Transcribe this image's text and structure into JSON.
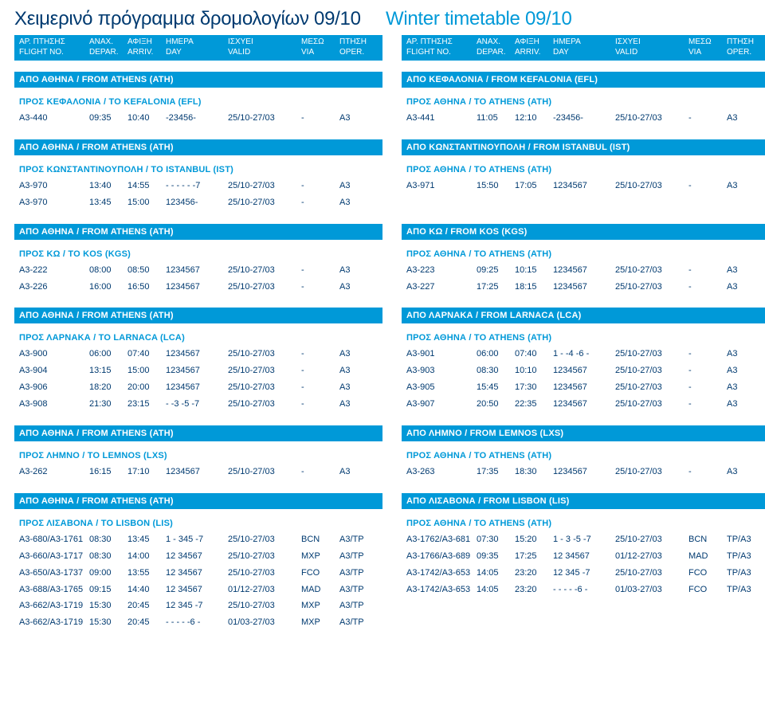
{
  "titles": {
    "left": "Χειμερινό πρόγραμμα δρομολογίων 09/10",
    "right": "Winter timetable 09/10"
  },
  "header": {
    "c1a": "ΑΡ. ΠΤΗΣΗΣ",
    "c1b": "FLIGHT NO.",
    "c2a": "ΑΝΑΧ.",
    "c2b": "DEPAR.",
    "c3a": "ΑΦΙΞΗ",
    "c3b": "ARRIV.",
    "c4a": "ΗΜΕΡΑ",
    "c4b": "DAY",
    "c5a": "ΙΣΧΥΕΙ",
    "c5b": "VALID",
    "c6a": "ΜΕΣΩ",
    "c6b": "VIA",
    "c7a": "ΠΤΗΣΗ",
    "c7b": "OPER."
  },
  "left": [
    {
      "bar": "ΑΠΟ ΑΘΗΝΑ / FROM ATHENS (ATH)",
      "title": "ΠΡΟΣ ΚΕΦΑΛΟΝΙΑ / TO KEFALONIA (EFL)",
      "rows": [
        {
          "f": "A3-440",
          "d": "09:35",
          "a": "10:40",
          "y": "-23456-",
          "v": "25/10-27/03",
          "via": "-",
          "op": "A3"
        }
      ]
    },
    {
      "bar": "ΑΠΟ ΑΘΗΝΑ / FROM ATHENS (ATH)",
      "title": "ΠΡΟΣ ΚΩΝΣΤΑΝΤΙΝΟΥΠΟΛΗ / TO ISTANBUL (IST)",
      "rows": [
        {
          "f": "A3-970",
          "d": "13:40",
          "a": "14:55",
          "y": "- - - - - -7",
          "v": "25/10-27/03",
          "via": "-",
          "op": "A3"
        },
        {
          "f": "A3-970",
          "d": "13:45",
          "a": "15:00",
          "y": "123456-",
          "v": "25/10-27/03",
          "via": "-",
          "op": "A3"
        }
      ]
    },
    {
      "bar": "ΑΠΟ ΑΘΗΝΑ / FROM ATHENS (ATH)",
      "title": "ΠΡΟΣ ΚΩ / TO KOS (KGS)",
      "rows": [
        {
          "f": "A3-222",
          "d": "08:00",
          "a": "08:50",
          "y": "1234567",
          "v": "25/10-27/03",
          "via": "-",
          "op": "A3"
        },
        {
          "f": "A3-226",
          "d": "16:00",
          "a": "16:50",
          "y": "1234567",
          "v": "25/10-27/03",
          "via": "-",
          "op": "A3"
        }
      ]
    },
    {
      "bar": "ΑΠΟ ΑΘΗΝΑ / FROM ATHENS (ATH)",
      "title": "ΠΡΟΣ ΛΑΡΝΑΚΑ / TO LARNACA (LCA)",
      "rows": [
        {
          "f": "A3-900",
          "d": "06:00",
          "a": "07:40",
          "y": "1234567",
          "v": "25/10-27/03",
          "via": "-",
          "op": "A3"
        },
        {
          "f": "A3-904",
          "d": "13:15",
          "a": "15:00",
          "y": "1234567",
          "v": "25/10-27/03",
          "via": "-",
          "op": "A3"
        },
        {
          "f": "A3-906",
          "d": "18:20",
          "a": "20:00",
          "y": "1234567",
          "v": "25/10-27/03",
          "via": "-",
          "op": "A3"
        },
        {
          "f": "A3-908",
          "d": "21:30",
          "a": "23:15",
          "y": "- -3 -5 -7",
          "v": "25/10-27/03",
          "via": "-",
          "op": "A3"
        }
      ]
    },
    {
      "bar": "ΑΠΟ ΑΘΗΝΑ / FROM ATHENS (ATH)",
      "title": "ΠΡΟΣ ΛΗΜΝΟ / TO LEMNOS (LXS)",
      "rows": [
        {
          "f": "A3-262",
          "d": "16:15",
          "a": "17:10",
          "y": "1234567",
          "v": "25/10-27/03",
          "via": "-",
          "op": "A3"
        }
      ]
    },
    {
      "bar": "ΑΠΟ ΑΘΗΝΑ / FROM ATHENS (ATH)",
      "title": "ΠΡΟΣ ΛΙΣΑΒΟΝΑ / TO LISBON (LIS)",
      "rows": [
        {
          "f": "A3-680/A3-1761",
          "d": "08:30",
          "a": "13:45",
          "y": "1 - 345 -7",
          "v": "25/10-27/03",
          "via": "BCN",
          "op": "A3/TP"
        },
        {
          "f": "A3-660/A3-1717",
          "d": "08:30",
          "a": "14:00",
          "y": "12 34567",
          "v": "25/10-27/03",
          "via": "MXP",
          "op": "A3/TP"
        },
        {
          "f": "A3-650/A3-1737",
          "d": "09:00",
          "a": "13:55",
          "y": "12 34567",
          "v": "25/10-27/03",
          "via": "FCO",
          "op": "A3/TP"
        },
        {
          "f": "A3-688/A3-1765",
          "d": "09:15",
          "a": "14:40",
          "y": "12 34567",
          "v": "01/12-27/03",
          "via": "MAD",
          "op": "A3/TP"
        },
        {
          "f": "A3-662/A3-1719",
          "d": "15:30",
          "a": "20:45",
          "y": "12 345 -7",
          "v": "25/10-27/03",
          "via": "MXP",
          "op": "A3/TP"
        },
        {
          "f": "A3-662/A3-1719",
          "d": "15:30",
          "a": "20:45",
          "y": "- - - - -6 -",
          "v": "01/03-27/03",
          "via": "MXP",
          "op": "A3/TP"
        }
      ]
    }
  ],
  "right": [
    {
      "bar": "ΑΠΟ ΚΕΦΑΛΟΝΙΑ / FROM KEFALONIA (EFL)",
      "title": "ΠΡΟΣ ΑΘΗΝΑ / TO ATHENS (ATH)",
      "rows": [
        {
          "f": "A3-441",
          "d": "11:05",
          "a": "12:10",
          "y": "-23456-",
          "v": "25/10-27/03",
          "via": "-",
          "op": "A3"
        }
      ]
    },
    {
      "bar": "ΑΠΟ ΚΩΝΣΤΑΝΤΙΝΟΥΠΟΛΗ / FROM ISTANBUL (IST)",
      "title": "ΠΡΟΣ ΑΘΗΝΑ / TO ATHENS (ATH)",
      "rows": [
        {
          "f": "A3-971",
          "d": "15:50",
          "a": "17:05",
          "y": "1234567",
          "v": "25/10-27/03",
          "via": "-",
          "op": "A3"
        }
      ],
      "pad": 1
    },
    {
      "bar": "ΑΠΟ ΚΩ / FROM KOS (KGS)",
      "title": "ΠΡΟΣ ΑΘΗΝΑ / TO ATHENS (ATH)",
      "rows": [
        {
          "f": "A3-223",
          "d": "09:25",
          "a": "10:15",
          "y": "1234567",
          "v": "25/10-27/03",
          "via": "-",
          "op": "A3"
        },
        {
          "f": "A3-227",
          "d": "17:25",
          "a": "18:15",
          "y": "1234567",
          "v": "25/10-27/03",
          "via": "-",
          "op": "A3"
        }
      ]
    },
    {
      "bar": "ΑΠΟ ΛΑΡΝΑΚΑ / FROM LARNACA (LCA)",
      "title": "ΠΡΟΣ ΑΘΗΝΑ / TO ATHENS (ATH)",
      "rows": [
        {
          "f": "A3-901",
          "d": "06:00",
          "a": "07:40",
          "y": "1 - -4 -6 -",
          "v": "25/10-27/03",
          "via": "-",
          "op": "A3"
        },
        {
          "f": "A3-903",
          "d": "08:30",
          "a": "10:10",
          "y": "1234567",
          "v": "25/10-27/03",
          "via": "-",
          "op": "A3"
        },
        {
          "f": "A3-905",
          "d": "15:45",
          "a": "17:30",
          "y": "1234567",
          "v": "25/10-27/03",
          "via": "-",
          "op": "A3"
        },
        {
          "f": "A3-907",
          "d": "20:50",
          "a": "22:35",
          "y": "1234567",
          "v": "25/10-27/03",
          "via": "-",
          "op": "A3"
        }
      ]
    },
    {
      "bar": "ΑΠΟ ΛΗΜΝΟ / FROM LEMNOS (LXS)",
      "title": "ΠΡΟΣ ΑΘΗΝΑ / TO ATHENS (ATH)",
      "rows": [
        {
          "f": "A3-263",
          "d": "17:35",
          "a": "18:30",
          "y": "1234567",
          "v": "25/10-27/03",
          "via": "-",
          "op": "A3"
        }
      ]
    },
    {
      "bar": "ΑΠΟ ΛΙΣΑΒΟΝΑ / FROM LISBON (LIS)",
      "title": "ΠΡΟΣ ΑΘΗΝΑ / TO ATHENS (ATH)",
      "rows": [
        {
          "f": "A3-1762/A3-681",
          "d": "07:30",
          "a": "15:20",
          "y": "1 - 3 -5 -7",
          "v": "25/10-27/03",
          "via": "BCN",
          "op": "TP/A3"
        },
        {
          "f": "A3-1766/A3-689",
          "d": "09:35",
          "a": "17:25",
          "y": "12 34567",
          "v": "01/12-27/03",
          "via": "MAD",
          "op": "TP/A3"
        },
        {
          "f": "A3-1742/A3-653",
          "d": "14:05",
          "a": "23:20",
          "y": "12 345 -7",
          "v": "25/10-27/03",
          "via": "FCO",
          "op": "TP/A3"
        },
        {
          "f": "A3-1742/A3-653",
          "d": "14:05",
          "a": "23:20",
          "y": "- - - - -6 -",
          "v": "01/03-27/03",
          "via": "FCO",
          "op": "TP/A3"
        }
      ]
    }
  ]
}
